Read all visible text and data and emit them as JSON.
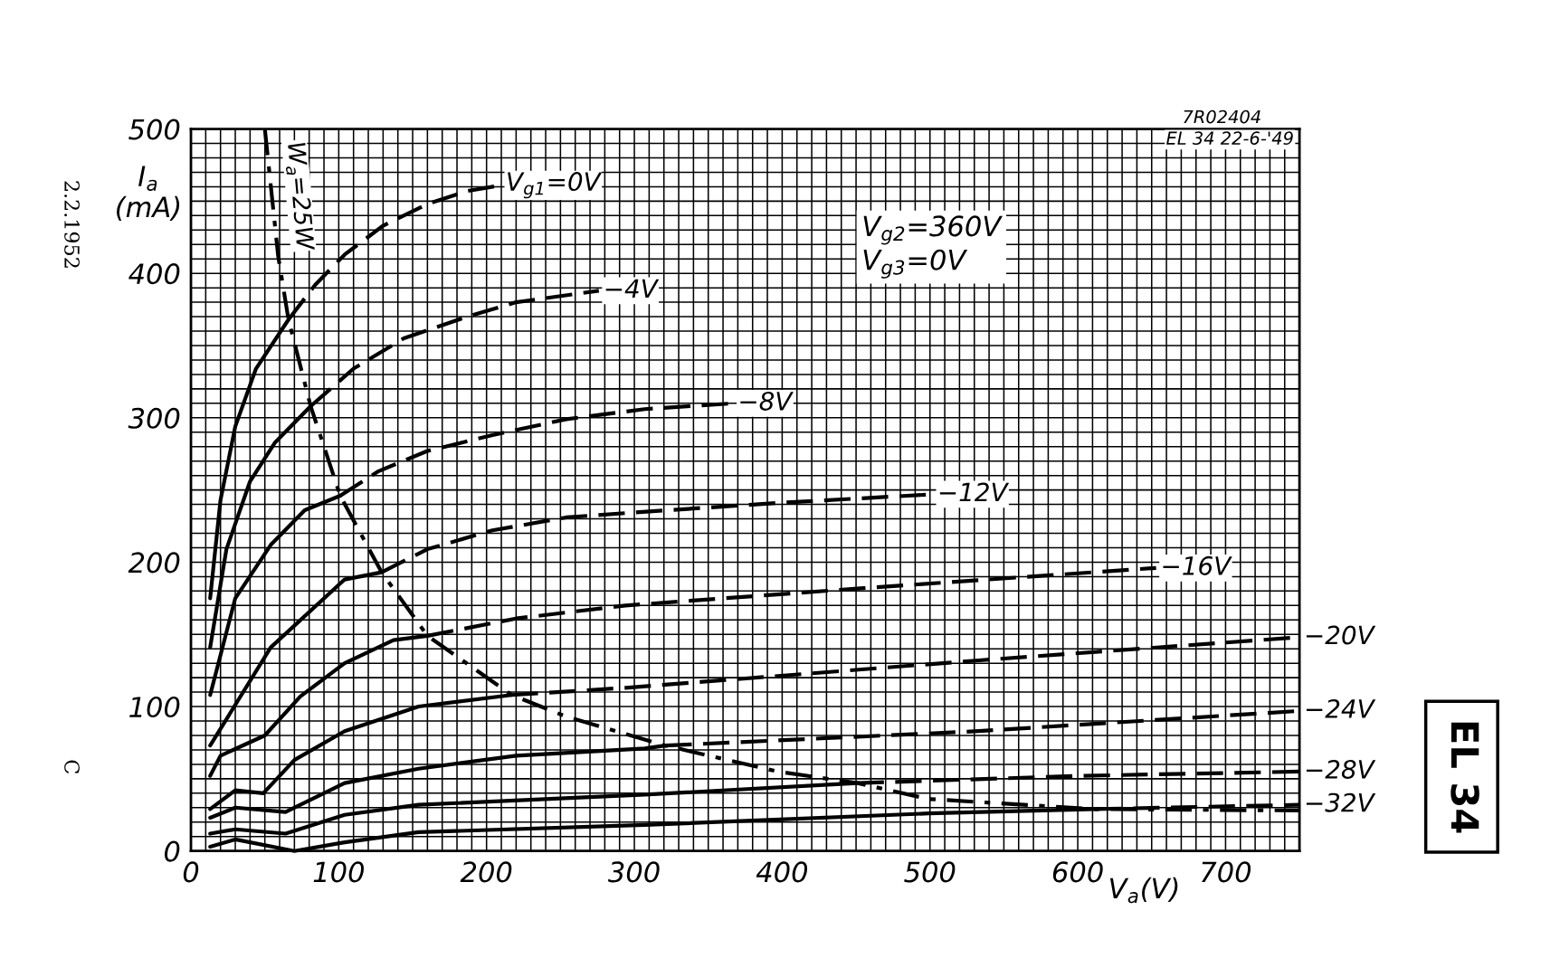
{
  "chart_data": {
    "type": "line",
    "xlabel": "V$_{a}$(V)",
    "ylabel": "I$_{a}$\n(mA)",
    "xlim": [
      0,
      750
    ],
    "ylim": [
      0,
      500
    ],
    "xticks": [
      0,
      {
        "value": 10,
        "label": null
      },
      {
        "value": 20,
        "label": null
      },
      {
        "value": 30,
        "label": null
      },
      {
        "value": 40,
        "label": null
      },
      {
        "value": 50,
        "label": null
      },
      {
        "value": 60,
        "label": null
      },
      {
        "value": 70,
        "label": null
      },
      {
        "value": 80,
        "label": null
      },
      {
        "value": 90,
        "label": null
      },
      100,
      {
        "value": 110,
        "label": null
      },
      {
        "value": 120,
        "label": null
      },
      {
        "value": 130,
        "label": null
      },
      {
        "value": 140,
        "label": null
      },
      {
        "value": 150,
        "label": null
      },
      {
        "value": 160,
        "label": null
      },
      {
        "value": 170,
        "label": null
      },
      {
        "value": 180,
        "label": null
      },
      {
        "value": 190,
        "label": null
      },
      200,
      {
        "value": 210,
        "label": null
      },
      {
        "value": 220,
        "label": null
      },
      {
        "value": 230,
        "label": null
      },
      {
        "value": 240,
        "label": null
      },
      {
        "value": 250,
        "label": null
      },
      {
        "value": 260,
        "label": null
      },
      {
        "value": 270,
        "label": null
      },
      {
        "value": 280,
        "label": null
      },
      {
        "value": 290,
        "label": null
      },
      300,
      {
        "value": 310,
        "label": null
      },
      {
        "value": 320,
        "label": null
      },
      {
        "value": 330,
        "label": null
      },
      {
        "value": 340,
        "label": null
      },
      {
        "value": 350,
        "label": null
      },
      {
        "value": 360,
        "label": null
      },
      {
        "value": 370,
        "label": null
      },
      {
        "value": 380,
        "label": null
      },
      {
        "value": 390,
        "label": null
      },
      400,
      {
        "value": 410,
        "label": null
      },
      {
        "value": 420,
        "label": null
      },
      {
        "value": 430,
        "label": null
      },
      {
        "value": 440,
        "label": null
      },
      {
        "value": 450,
        "label": null
      },
      {
        "value": 460,
        "label": null
      },
      {
        "value": 470,
        "label": null
      },
      {
        "value": 480,
        "label": null
      },
      {
        "value": 490,
        "label": null
      },
      500,
      {
        "value": 510,
        "label": null
      },
      {
        "value": 520,
        "label": null
      },
      {
        "value": 530,
        "label": null
      },
      {
        "value": 540,
        "label": null
      },
      {
        "value": 550,
        "label": null
      },
      {
        "value": 560,
        "label": null
      },
      {
        "value": 570,
        "label": null
      },
      {
        "value": 580,
        "label": null
      },
      {
        "value": 590,
        "label": null
      },
      600,
      {
        "value": 610,
        "label": null
      },
      {
        "value": 620,
        "label": null
      },
      {
        "value": 630,
        "label": null
      },
      {
        "value": 640,
        "label": null
      },
      {
        "value": 650,
        "label": null
      },
      {
        "value": 660,
        "label": null
      },
      {
        "value": 670,
        "label": null
      },
      {
        "value": 680,
        "label": null
      },
      {
        "value": 690,
        "label": null
      },
      700,
      {
        "value": 710,
        "label": null
      },
      {
        "value": 720,
        "label": null
      },
      {
        "value": 730,
        "label": null
      },
      {
        "value": 740,
        "label": null
      },
      {
        "value": 750,
        "label": null
      }
    ],
    "yticks": [
      0,
      {
        "value": 10,
        "label": null
      },
      {
        "value": 20,
        "label": null
      },
      {
        "value": 30,
        "label": null
      },
      {
        "value": 40,
        "label": null
      },
      {
        "value": 50,
        "label": null
      },
      {
        "value": 60,
        "label": null
      },
      {
        "value": 70,
        "label": null
      },
      {
        "value": 80,
        "label": null
      },
      {
        "value": 90,
        "label": null
      },
      100,
      {
        "value": 110,
        "label": null
      },
      {
        "value": 120,
        "label": null
      },
      {
        "value": 130,
        "label": null
      },
      {
        "value": 140,
        "label": null
      },
      {
        "value": 150,
        "label": null
      },
      {
        "value": 160,
        "label": null
      },
      {
        "value": 170,
        "label": null
      },
      {
        "value": 180,
        "label": null
      },
      {
        "value": 190,
        "label": null
      },
      200,
      {
        "value": 210,
        "label": null
      },
      {
        "value": 220,
        "label": null
      },
      {
        "value": 230,
        "label": null
      },
      {
        "value": 240,
        "label": null
      },
      {
        "value": 250,
        "label": null
      },
      {
        "value": 260,
        "label": null
      },
      {
        "value": 270,
        "label": null
      },
      {
        "value": 280,
        "label": null
      },
      {
        "value": 290,
        "label": null
      },
      300,
      {
        "value": 310,
        "label": null
      },
      {
        "value": 320,
        "label": null
      },
      {
        "value": 330,
        "label": null
      },
      {
        "value": 340,
        "label": null
      },
      {
        "value": 350,
        "label": null
      },
      {
        "value": 360,
        "label": null
      },
      {
        "value": 370,
        "label": null
      },
      {
        "value": 380,
        "label": null
      },
      {
        "value": 390,
        "label": null
      },
      400,
      {
        "value": 410,
        "label": null
      },
      {
        "value": 420,
        "label": null
      },
      {
        "value": 430,
        "label": null
      },
      {
        "value": 440,
        "label": null
      },
      {
        "value": 450,
        "label": null
      },
      {
        "value": 460,
        "label": null
      },
      {
        "value": 470,
        "label": null
      },
      {
        "value": 480,
        "label": null
      },
      {
        "value": 490,
        "label": null
      },
      500
    ],
    "grid": true,
    "marker": "none",
    "line_style": "solid",
    "series": [
      {
        "color": "#000000",
        "x": [
          13,
          20,
          30,
          44,
          66
        ],
        "values": [
          175,
          243,
          294,
          334,
          368
        ]
      },
      {
        "name": "V$_{g1}$=0V",
        "color": "#000000",
        "line_style": "dashed",
        "x": [
          66,
          84,
          104,
          130,
          160,
          187,
          210
        ],
        "values": [
          368,
          392,
          413,
          433,
          448,
          457,
          461
        ]
      },
      {
        "color": "#000000",
        "x": [
          13,
          24,
          40,
          57,
          81
        ],
        "values": [
          141,
          209,
          256,
          283,
          308
        ]
      },
      {
        "name": "−4V",
        "color": "#000000",
        "line_style": "dashed",
        "x": [
          81,
          110,
          144,
          187,
          220,
          276
        ],
        "values": [
          308,
          334,
          355,
          370,
          380,
          388
        ]
      },
      {
        "color": "#000000",
        "x": [
          13,
          30,
          54,
          77,
          101
        ],
        "values": [
          108,
          175,
          212,
          236,
          246
        ]
      },
      {
        "name": "−8V",
        "color": "#000000",
        "line_style": "dashed",
        "x": [
          101,
          127,
          160,
          204,
          254,
          307,
          367
        ],
        "values": [
          246,
          263,
          277,
          288,
          299,
          306,
          310
        ]
      },
      {
        "color": "#000000",
        "x": [
          13,
          54,
          104,
          129
        ],
        "values": [
          73,
          141,
          188,
          193
        ]
      },
      {
        "name": "−12V",
        "color": "#000000",
        "line_style": "dashed",
        "x": [
          129,
          160,
          204,
          254,
          294,
          397,
          502
        ],
        "values": [
          193,
          209,
          222,
          231,
          234,
          241,
          247
        ]
      },
      {
        "color": "#000000",
        "x": [
          13,
          20,
          50,
          74,
          104,
          137,
          160
        ],
        "values": [
          52,
          66,
          80,
          107,
          130,
          146,
          149
        ]
      },
      {
        "name": "−16V",
        "color": "#000000",
        "line_style": "dashed",
        "x": [
          160,
          220,
          294,
          455,
          653
        ],
        "values": [
          149,
          161,
          170,
          182,
          196
        ]
      },
      {
        "color": "#000000",
        "x": [
          13,
          30,
          49,
          70,
          104,
          154,
          217
        ],
        "values": [
          29,
          42,
          40,
          63,
          83,
          100,
          108
        ]
      },
      {
        "name": "−20V",
        "color": "#000000",
        "line_style": "dashed",
        "x": [
          217,
          294,
          533,
          750
        ],
        "values": [
          108,
          113,
          132,
          148
        ]
      },
      {
        "color": "#000000",
        "x": [
          13,
          30,
          64,
          104,
          154,
          220,
          307,
          321
        ],
        "values": [
          23,
          30,
          27,
          47,
          57,
          66,
          71,
          73
        ]
      },
      {
        "name": "−24V",
        "color": "#000000",
        "line_style": "dashed",
        "x": [
          321,
          533,
          750
        ],
        "values": [
          73,
          83,
          97
        ]
      },
      {
        "color": "#000000",
        "x": [
          13,
          30,
          64,
          104,
          154,
          307,
          451
        ],
        "values": [
          12,
          15,
          12,
          25,
          32,
          39,
          47
        ]
      },
      {
        "name": "−28V",
        "color": "#000000",
        "line_style": "dashed",
        "x": [
          451,
          601,
          750
        ],
        "values": [
          47,
          52,
          55
        ]
      },
      {
        "color": "#000000",
        "x": [
          13,
          30,
          70,
          104,
          154,
          307,
          499,
          612
        ],
        "values": [
          3,
          8,
          0,
          6,
          13,
          18,
          26,
          29
        ]
      },
      {
        "name": "−32V",
        "color": "#000000",
        "line_style": "dashed",
        "x": [
          612,
          750
        ],
        "values": [
          29,
          32
        ]
      },
      {
        "name": "W$_{a}$=25W",
        "color": "#000000",
        "line_style": "dashdot",
        "x": [
          50,
          59,
          66,
          81,
          101,
          129,
          160,
          217,
          254,
          321,
          397,
          451,
          499,
          612,
          750
        ],
        "values": [
          500,
          412,
          368,
          308,
          246,
          193,
          149,
          108,
          93,
          73,
          55,
          47,
          36,
          29,
          28
        ]
      }
    ],
    "annotations": [
      "V$_{g2}$=360V\nV$_{g3}$=0V",
      "7R02404",
      "EL 34 22-6-'49",
      "2.2.1952",
      "C",
      "EL 34"
    ]
  }
}
